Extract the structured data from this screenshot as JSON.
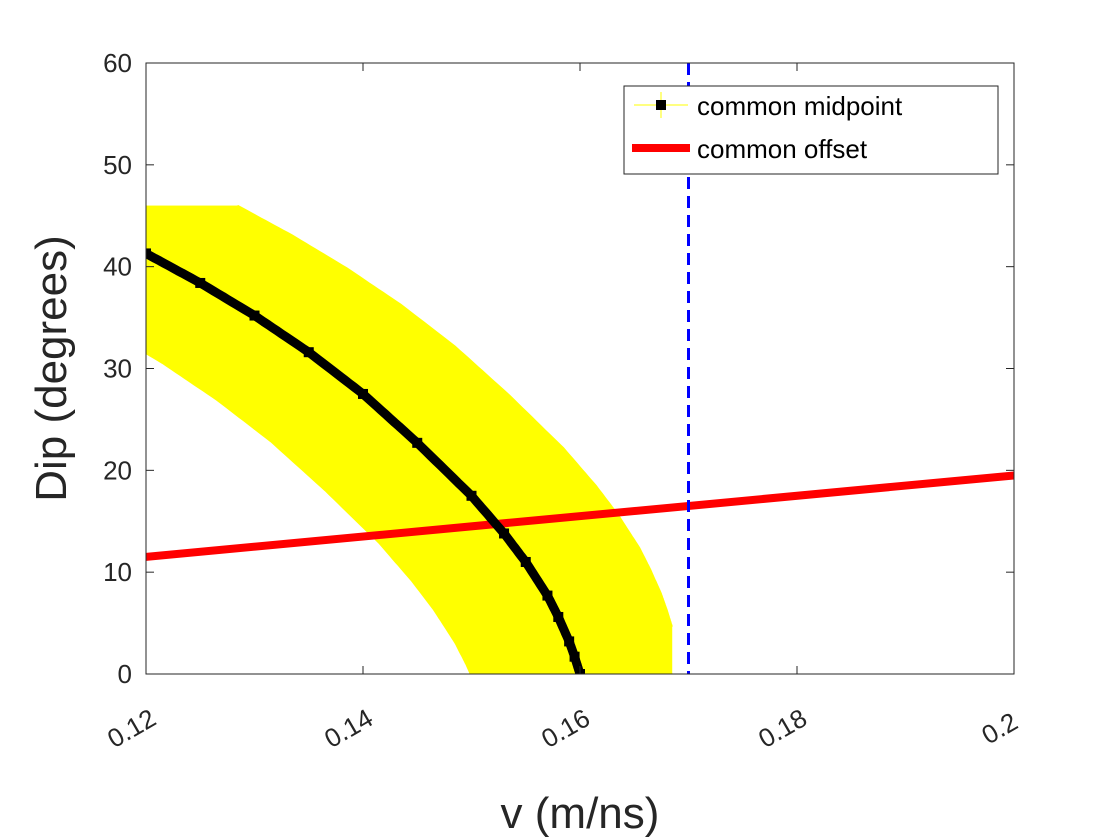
{
  "chart_data": {
    "type": "line",
    "title": "",
    "xlabel": "v (m/ns)",
    "ylabel": "Dip (degrees)",
    "xlim": [
      0.12,
      0.2
    ],
    "ylim": [
      0,
      60
    ],
    "xticks": [
      0.12,
      0.14,
      0.16,
      0.18,
      0.2
    ],
    "xtick_labels": [
      "0.12",
      "0.14",
      "0.16",
      "0.18",
      "0.2"
    ],
    "yticks": [
      0,
      10,
      20,
      30,
      40,
      50,
      60
    ],
    "ytick_labels": [
      "0",
      "10",
      "20",
      "30",
      "40",
      "50",
      "60"
    ],
    "grid": false,
    "legend_position": "top-right",
    "series": [
      {
        "name": "common midpoint",
        "color": "#000000",
        "error_color": "#ffff00",
        "x": [
          0.12,
          0.125,
          0.13,
          0.135,
          0.14,
          0.145,
          0.15,
          0.153,
          0.155,
          0.157,
          0.158,
          0.159,
          0.1595,
          0.16
        ],
        "y": [
          41.3,
          38.4,
          35.2,
          31.6,
          27.5,
          22.7,
          17.5,
          13.8,
          11.0,
          7.7,
          5.6,
          3.2,
          1.7,
          0.0
        ],
        "x_err": [
          0.0085,
          0.0085,
          0.0085,
          0.0085,
          0.0085,
          0.0085,
          0.0085,
          0.0085,
          0.0085,
          0.0085,
          0.0085,
          0.0085,
          0.0085,
          0.0085
        ],
        "y_err": [
          4.7,
          4.7,
          4.7,
          4.7,
          4.7,
          4.7,
          4.7,
          4.7,
          4.7,
          4.7,
          4.7,
          4.7,
          4.7,
          4.7
        ]
      },
      {
        "name": "common offset",
        "color": "#ff0000",
        "x": [
          0.12,
          0.2
        ],
        "y": [
          11.5,
          19.5
        ]
      }
    ],
    "reference_line": {
      "orientation": "vertical",
      "x": 0.17,
      "color": "#0000ff",
      "style": "dashed"
    }
  }
}
